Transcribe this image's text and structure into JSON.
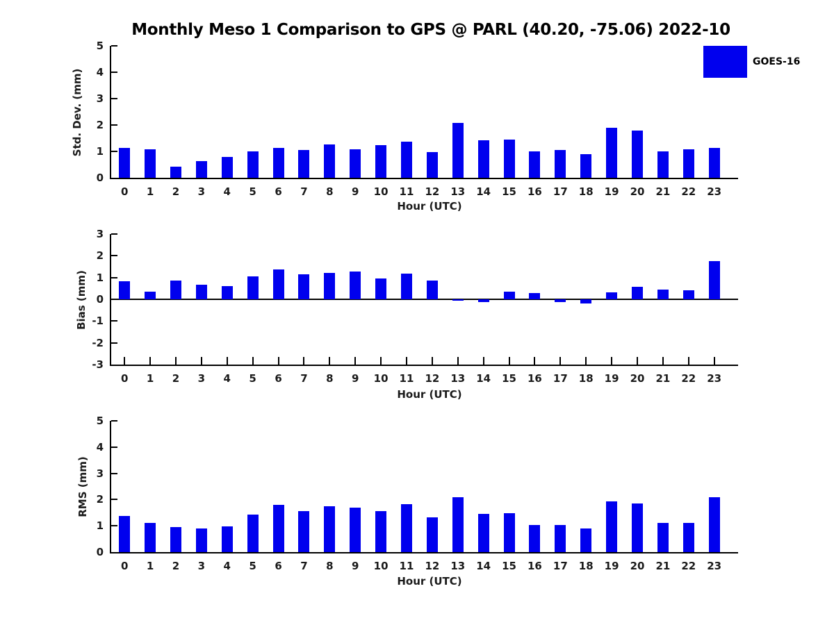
{
  "title": "Monthly Meso 1 Comparison to GPS @ PARL (40.20, -75.06) 2022-10",
  "legend": {
    "label": "GOES-16",
    "position": "top-right"
  },
  "colors": {
    "bar": "#0000EE",
    "axis": "#000000",
    "text": "#1a1a1a",
    "background": "#ffffff"
  },
  "chart_data": [
    {
      "type": "bar",
      "series_name": "GOES-16",
      "ylabel": "Std. Dev. (mm)",
      "xlabel": "Hour (UTC)",
      "categories": [
        0,
        1,
        2,
        3,
        4,
        5,
        6,
        7,
        8,
        9,
        10,
        11,
        12,
        13,
        14,
        15,
        16,
        17,
        18,
        19,
        20,
        21,
        22,
        23
      ],
      "values": [
        1.12,
        1.08,
        0.42,
        0.64,
        0.8,
        1.01,
        1.13,
        1.06,
        1.26,
        1.08,
        1.23,
        1.38,
        0.97,
        2.09,
        1.43,
        1.44,
        1.0,
        1.05,
        0.9,
        1.89,
        1.78,
        1.01,
        1.07,
        1.12
      ],
      "ylim": [
        0,
        5
      ],
      "yticks": [
        0,
        1,
        2,
        3,
        4,
        5
      ],
      "xlim": [
        -0.52,
        23.93
      ],
      "grid": false
    },
    {
      "type": "bar",
      "series_name": "GOES-16",
      "ylabel": "Bias (mm)",
      "xlabel": "Hour (UTC)",
      "categories": [
        0,
        1,
        2,
        3,
        4,
        5,
        6,
        7,
        8,
        9,
        10,
        11,
        12,
        13,
        14,
        15,
        16,
        17,
        18,
        19,
        20,
        21,
        22,
        23
      ],
      "values": [
        0.82,
        0.36,
        0.86,
        0.67,
        0.62,
        1.04,
        1.38,
        1.14,
        1.21,
        1.29,
        0.95,
        1.18,
        0.87,
        -0.06,
        -0.13,
        0.36,
        0.3,
        -0.13,
        -0.18,
        0.33,
        0.56,
        0.45,
        0.4,
        1.76
      ],
      "ylim": [
        -3,
        3
      ],
      "yticks": [
        -3,
        -2,
        -1,
        0,
        1,
        2,
        3
      ],
      "xlim": [
        -0.52,
        23.93
      ],
      "zero_line": true,
      "grid": false
    },
    {
      "type": "bar",
      "series_name": "GOES-16",
      "ylabel": "RMS (mm)",
      "xlabel": "Hour (UTC)",
      "categories": [
        0,
        1,
        2,
        3,
        4,
        5,
        6,
        7,
        8,
        9,
        10,
        11,
        12,
        13,
        14,
        15,
        16,
        17,
        18,
        19,
        20,
        21,
        22,
        23
      ],
      "values": [
        1.38,
        1.12,
        0.94,
        0.91,
        0.99,
        1.43,
        1.79,
        1.56,
        1.74,
        1.68,
        1.57,
        1.82,
        1.31,
        2.1,
        1.45,
        1.48,
        1.03,
        1.04,
        0.9,
        1.92,
        1.84,
        1.11,
        1.11,
        2.08
      ],
      "ylim": [
        0,
        5
      ],
      "yticks": [
        0,
        1,
        2,
        3,
        4,
        5
      ],
      "xlim": [
        -0.52,
        23.93
      ],
      "grid": false
    }
  ]
}
